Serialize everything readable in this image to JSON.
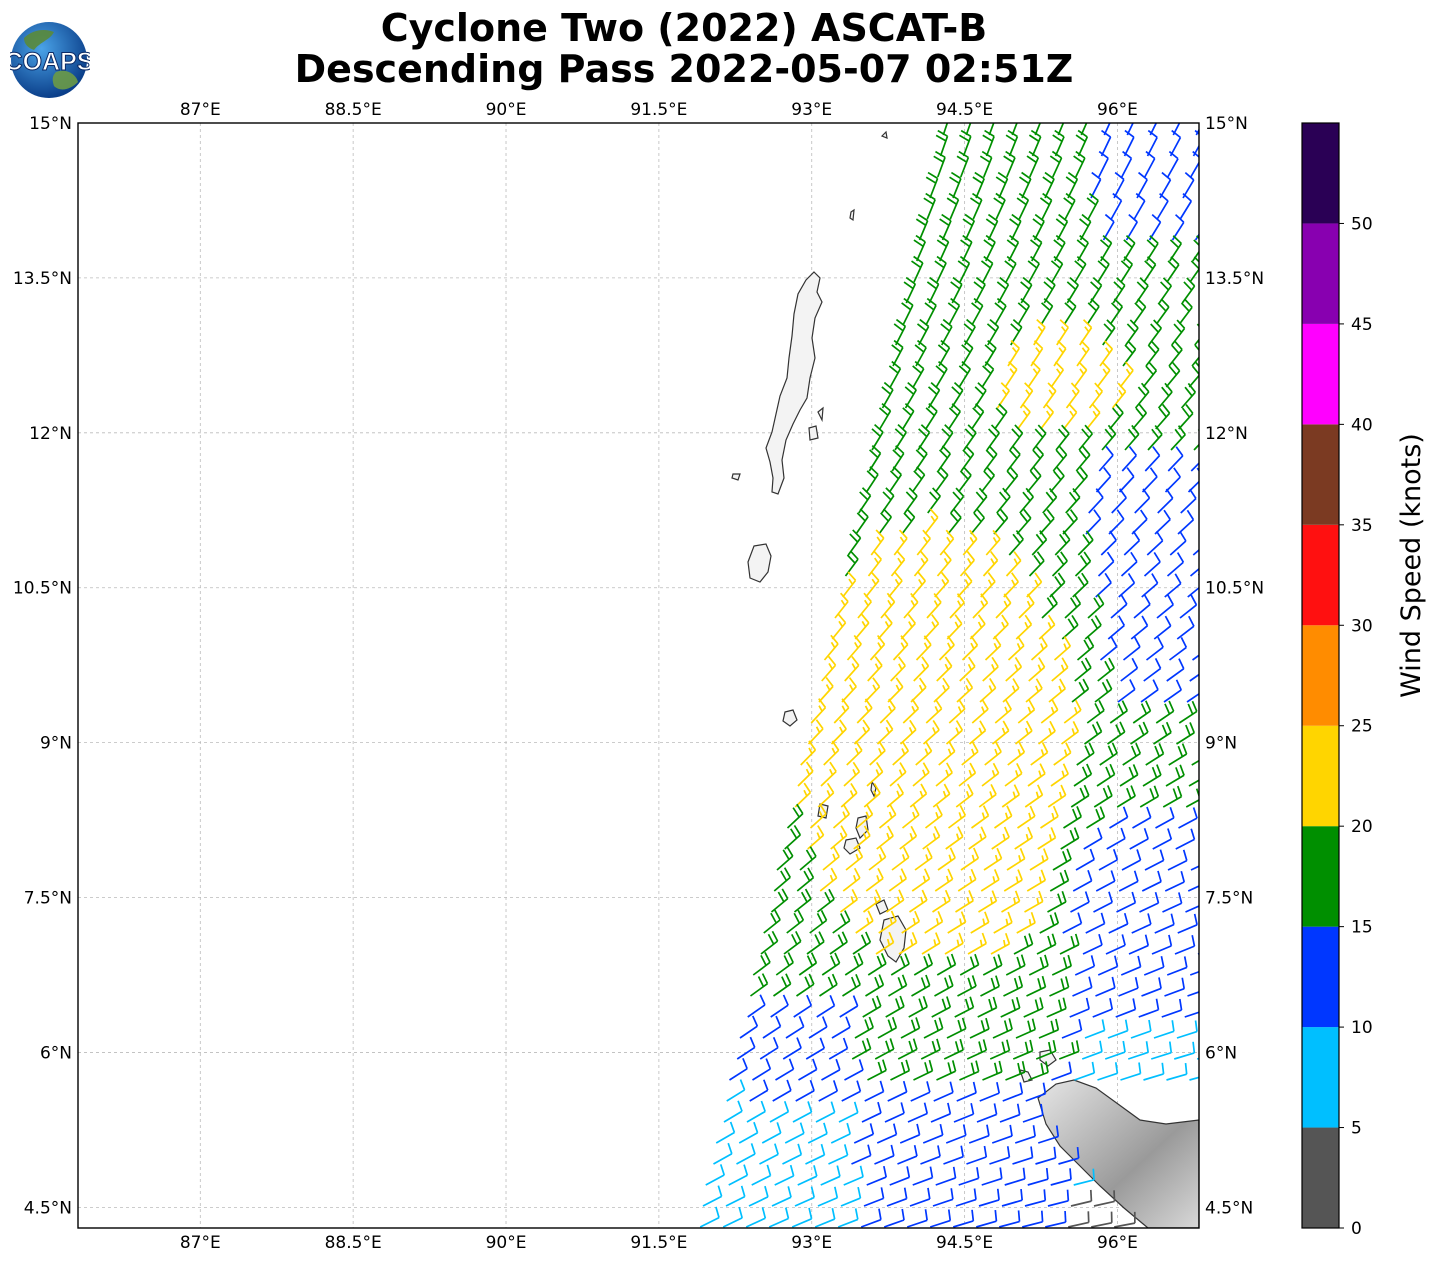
{
  "title": {
    "line1": "Cyclone Two (2022) ASCAT-B",
    "line2": "Descending Pass 2022-05-07 02:51Z"
  },
  "logo": {
    "text": "COAPS",
    "icon": "globe-icon"
  },
  "map": {
    "lon_range": [
      85.8,
      96.8
    ],
    "lat_range": [
      4.3,
      15.0
    ],
    "lon_ticks": [
      "87°E",
      "88.5°E",
      "90°E",
      "91.5°E",
      "93°E",
      "94.5°E",
      "96°E"
    ],
    "lon_values": [
      87,
      88.5,
      90,
      91.5,
      93,
      94.5,
      96
    ],
    "lat_ticks": [
      "15°N",
      "13.5°N",
      "12°N",
      "10.5°N",
      "9°N",
      "7.5°N",
      "6°N",
      "4.5°N"
    ],
    "lat_values": [
      15,
      13.5,
      12,
      10.5,
      9,
      7.5,
      6,
      4.5
    ],
    "gridlines": true,
    "coastline_color": "#333333",
    "land_features": [
      "Andaman Islands",
      "Nicobar Islands",
      "Sumatra"
    ]
  },
  "colorbar": {
    "label": "Wind Speed (knots)",
    "bounds": [
      0,
      5,
      10,
      15,
      20,
      25,
      30,
      35,
      40,
      45,
      50,
      55
    ],
    "tick_labels": [
      "0",
      "5",
      "10",
      "15",
      "20",
      "25",
      "30",
      "35",
      "40",
      "45",
      "50"
    ],
    "colors": [
      "#555555",
      "#00bfff",
      "#0037ff",
      "#008f00",
      "#ffd500",
      "#ff8c00",
      "#ff1010",
      "#7b3a22",
      "#ff00ff",
      "#8800b0",
      "#2a0055"
    ]
  }
}
